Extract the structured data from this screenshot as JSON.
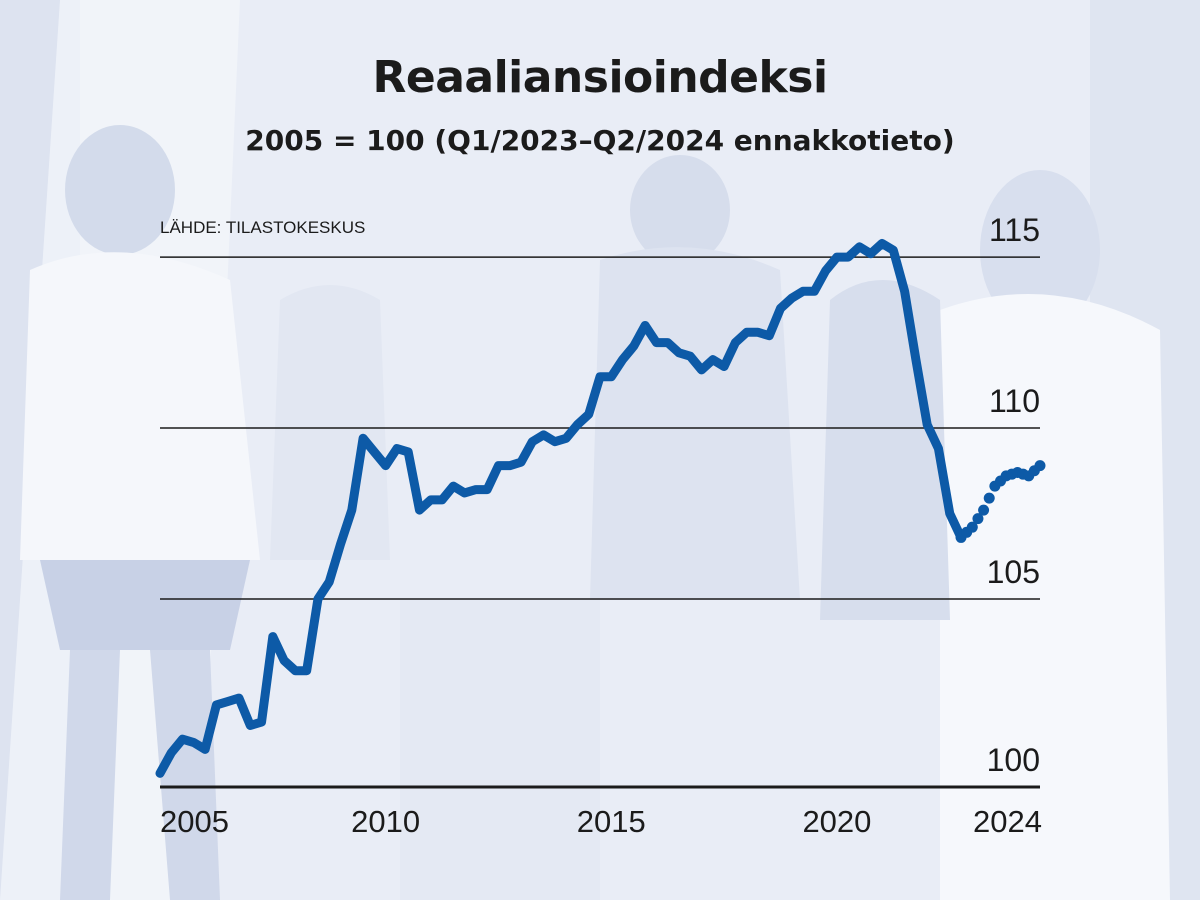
{
  "colors": {
    "series": "#0d5aa7",
    "grid": "#1b1b1b",
    "text": "#1b1b1b",
    "background": "#eef1f8"
  },
  "chart_data": {
    "type": "line",
    "title": "Reaaliansioindeksi",
    "subtitle": "2005 = 100 (Q1/2023–Q2/2024 ennakkotieto)",
    "source": "LÄHDE: TILASTOKESKUS",
    "xlabel": "",
    "ylabel": "",
    "ylim": [
      99.5,
      115.5
    ],
    "xlim": [
      2005,
      2024.5
    ],
    "grid": true,
    "y_ticks": [
      100,
      105,
      110,
      115
    ],
    "x_ticks": [
      {
        "value": 2005,
        "label": "2005"
      },
      {
        "value": 2010,
        "label": "2010"
      },
      {
        "value": 2015,
        "label": "2015"
      },
      {
        "value": 2020,
        "label": "2020"
      },
      {
        "value": 2024,
        "label": "2024"
      }
    ],
    "series": [
      {
        "style": "solid",
        "x": [
          2005.0,
          2005.25,
          2005.5,
          2005.75,
          2006.0,
          2006.25,
          2006.5,
          2006.75,
          2007.0,
          2007.25,
          2007.5,
          2007.75,
          2008.0,
          2008.25,
          2008.5,
          2008.75,
          2009.0,
          2009.25,
          2009.5,
          2009.75,
          2010.0,
          2010.25,
          2010.5,
          2010.75,
          2011.0,
          2011.25,
          2011.5,
          2011.75,
          2012.0,
          2012.25,
          2012.5,
          2012.75,
          2013.0,
          2013.25,
          2013.5,
          2013.75,
          2014.0,
          2014.25,
          2014.5,
          2014.75,
          2015.0,
          2015.25,
          2015.5,
          2015.75,
          2016.0,
          2016.25,
          2016.5,
          2016.75,
          2017.0,
          2017.25,
          2017.5,
          2017.75,
          2018.0,
          2018.25,
          2018.5,
          2018.75,
          2019.0,
          2019.25,
          2019.5,
          2019.75,
          2020.0,
          2020.25,
          2020.5,
          2020.75,
          2021.0,
          2021.25,
          2021.5,
          2021.75,
          2022.0,
          2022.25,
          2022.5,
          2022.75
        ],
        "y": [
          99.9,
          100.5,
          100.9,
          100.8,
          100.6,
          101.9,
          102.0,
          102.1,
          101.3,
          101.4,
          103.9,
          103.2,
          102.9,
          102.9,
          105.0,
          105.5,
          106.6,
          107.6,
          109.7,
          109.3,
          108.9,
          109.4,
          109.3,
          107.6,
          107.9,
          107.9,
          108.3,
          108.1,
          108.2,
          108.2,
          108.9,
          108.9,
          109.0,
          109.6,
          109.8,
          109.6,
          109.7,
          110.1,
          110.4,
          111.5,
          111.5,
          112.0,
          112.4,
          113.0,
          112.5,
          112.5,
          112.2,
          112.1,
          111.7,
          112.0,
          111.8,
          112.5,
          112.8,
          112.8,
          112.7,
          113.5,
          113.8,
          114.0,
          114.0,
          114.6,
          115.0,
          115.0,
          115.3,
          115.1,
          115.4,
          115.2,
          114.0,
          112.0,
          110.1,
          109.4,
          107.5,
          106.8
        ]
      },
      {
        "style": "dotted",
        "x": [
          2022.75,
          2023.0,
          2023.25,
          2023.5,
          2023.75,
          2024.0,
          2024.25,
          2024.5
        ],
        "y": [
          106.8,
          107.1,
          107.6,
          108.3,
          108.6,
          108.7,
          108.6,
          108.9
        ]
      }
    ]
  }
}
